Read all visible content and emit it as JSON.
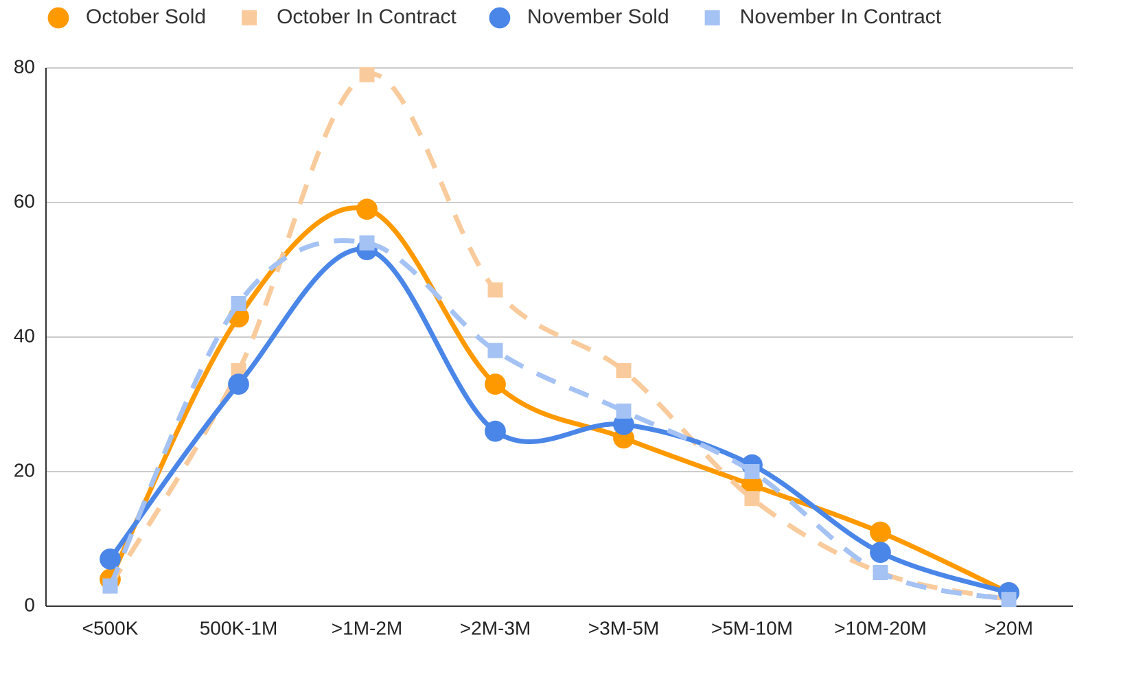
{
  "chart_data": {
    "type": "line",
    "categories": [
      "<500K",
      "500K-1M",
      ">1M-2M",
      ">2M-3M",
      ">3M-5M",
      ">5M-10M",
      ">10M-20M",
      ">20M"
    ],
    "series": [
      {
        "name": "October Sold",
        "color": "#ff9900",
        "marker": "circle",
        "dashed": false,
        "values": [
          4,
          43,
          59,
          33,
          25,
          18,
          11,
          2
        ]
      },
      {
        "name": "October In Contract",
        "color": "#f9cb9c",
        "marker": "square",
        "dashed": true,
        "values": [
          3,
          35,
          79,
          47,
          35,
          16,
          5,
          1
        ]
      },
      {
        "name": "November Sold",
        "color": "#4a86e8",
        "marker": "circle",
        "dashed": false,
        "values": [
          7,
          33,
          53,
          26,
          27,
          21,
          8,
          2
        ]
      },
      {
        "name": "November In Contract",
        "color": "#a4c2f4",
        "marker": "square",
        "dashed": true,
        "values": [
          3,
          45,
          54,
          38,
          29,
          20,
          5,
          1
        ]
      }
    ],
    "ylim": [
      0,
      80
    ],
    "yticks": [
      0,
      20,
      40,
      60,
      80
    ],
    "grid": true,
    "smooth": true,
    "legend": "top"
  }
}
